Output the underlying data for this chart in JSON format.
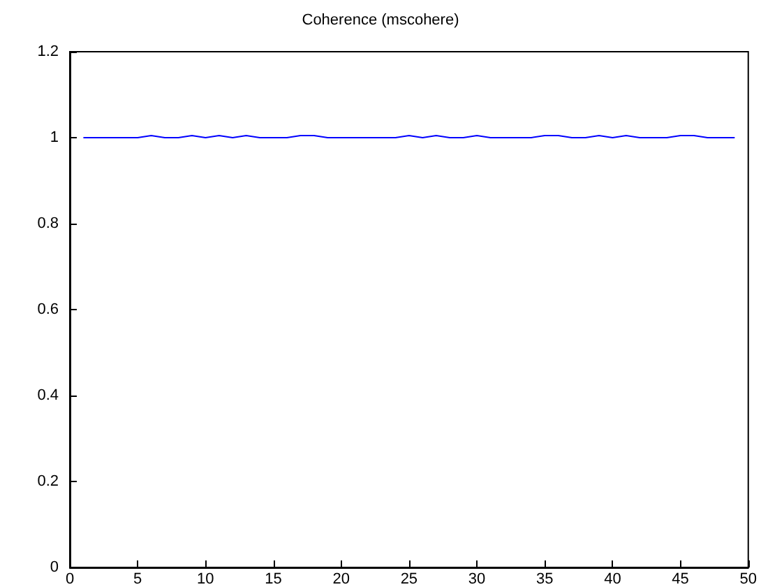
{
  "chart_data": {
    "type": "line",
    "title": "Coherence (mscohere)",
    "x": [
      1,
      2,
      3,
      4,
      5,
      6,
      7,
      8,
      9,
      10,
      11,
      12,
      13,
      14,
      15,
      16,
      17,
      18,
      19,
      20,
      21,
      22,
      23,
      24,
      25,
      26,
      27,
      28,
      29,
      30,
      31,
      32,
      33,
      34,
      35,
      36,
      37,
      38,
      39,
      40,
      41,
      42,
      43,
      44,
      45,
      46,
      47,
      48,
      49
    ],
    "series": [
      {
        "color": "#0000ff",
        "values": [
          1,
          1,
          1,
          1,
          1,
          1.005,
          1,
          1,
          1.005,
          1,
          1.005,
          1,
          1.005,
          1,
          1,
          1,
          1.005,
          1.005,
          1,
          1,
          1,
          1,
          1,
          1,
          1.005,
          1,
          1.005,
          1,
          1,
          1.005,
          1,
          1,
          1,
          1,
          1.005,
          1.005,
          1,
          1,
          1.005,
          1,
          1.005,
          1,
          1,
          1,
          1.005,
          1.005,
          1,
          1,
          1
        ]
      }
    ],
    "xlim": [
      0,
      50
    ],
    "xticks": [
      0,
      5,
      10,
      15,
      20,
      25,
      30,
      35,
      40,
      45,
      50
    ],
    "ylim": [
      0,
      1.2
    ],
    "yticks": [
      0,
      0.2,
      0.4,
      0.6,
      0.8,
      1,
      1.2
    ],
    "grid": false,
    "marker": "none",
    "line_style": "solid"
  }
}
